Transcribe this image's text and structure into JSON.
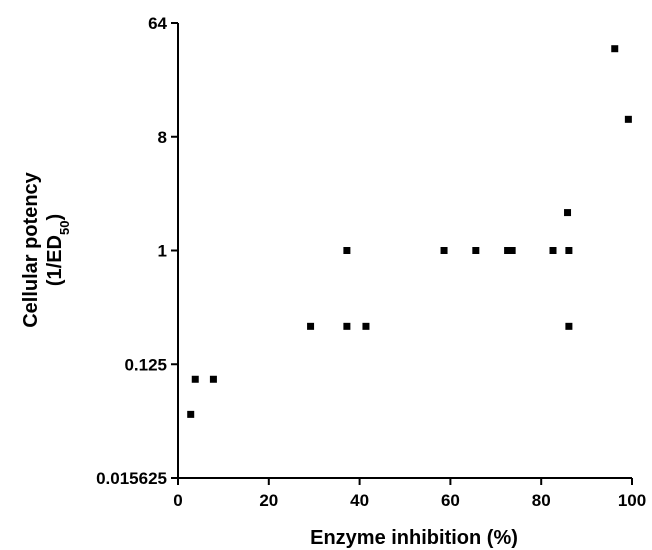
{
  "chart_data": {
    "type": "scatter",
    "xlabel": "Enzyme inhibition (%)",
    "ylabel": {
      "line1": "Cellular potency",
      "line2_prefix": "(1/ED",
      "line2_sub": "50",
      "line2_suffix": ")"
    },
    "xlim": [
      0,
      100
    ],
    "ylim": [
      0.015625,
      64
    ],
    "yscale": "log2",
    "x_ticks": [
      0,
      20,
      40,
      60,
      80,
      100
    ],
    "y_ticks": [
      0.015625,
      0.125,
      1,
      8,
      64
    ],
    "y_tick_labels": [
      "0.015625",
      "0.125",
      "1",
      "8",
      "64"
    ],
    "grid": false,
    "marker": "square",
    "marker_color": "#000000",
    "points": [
      {
        "x": 2.8,
        "y": 0.05
      },
      {
        "x": 3.8,
        "y": 0.095
      },
      {
        "x": 7.8,
        "y": 0.095
      },
      {
        "x": 29.2,
        "y": 0.25
      },
      {
        "x": 37.2,
        "y": 0.25
      },
      {
        "x": 41.4,
        "y": 0.25
      },
      {
        "x": 37.2,
        "y": 1
      },
      {
        "x": 58.6,
        "y": 1
      },
      {
        "x": 65.6,
        "y": 1
      },
      {
        "x": 72.6,
        "y": 1
      },
      {
        "x": 73.6,
        "y": 1
      },
      {
        "x": 82.6,
        "y": 1
      },
      {
        "x": 86.1,
        "y": 1
      },
      {
        "x": 85.8,
        "y": 2.0
      },
      {
        "x": 86.1,
        "y": 0.25
      },
      {
        "x": 96.2,
        "y": 40
      },
      {
        "x": 99.2,
        "y": 11
      }
    ]
  }
}
